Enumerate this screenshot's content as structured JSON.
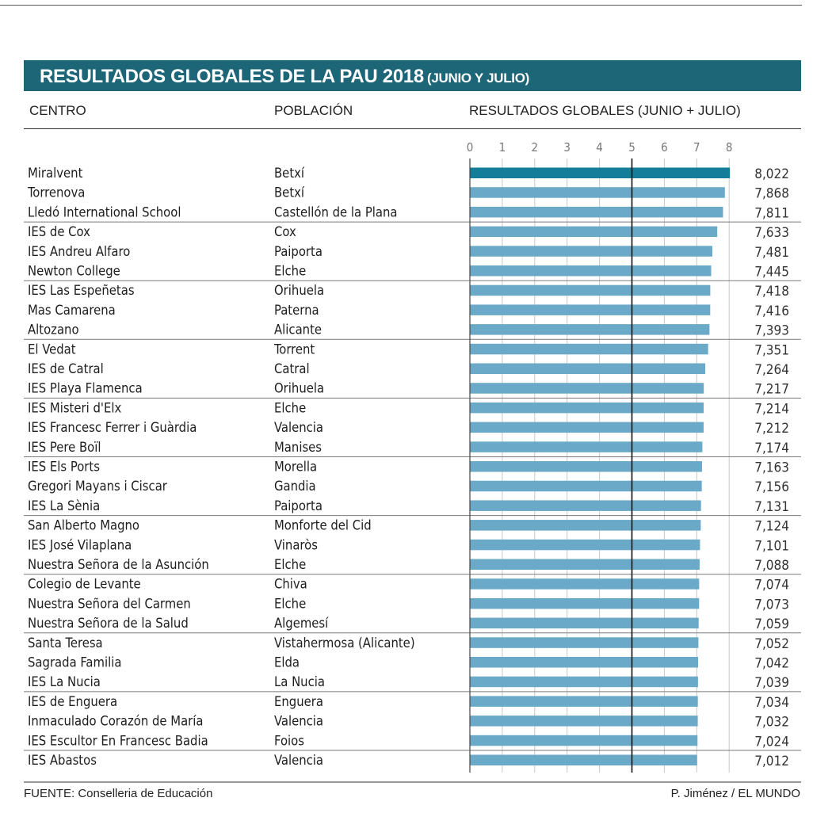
{
  "title": "RESULTADOS GLOBALES DE LA PAU 2018",
  "subtitle": "(JUNIO Y JULIO)",
  "headers": {
    "centro": "CENTRO",
    "poblacion": "POBLACIÓN",
    "resultados": "RESULTADOS GLOBALES (JUNIO + JULIO)"
  },
  "footer": {
    "source": "FUENTE: Conselleria de Educación",
    "credit": "P. Jiménez / EL MUNDO"
  },
  "colors": {
    "banner": "#1d6677",
    "highlight_bar": "#137d9a",
    "bar": "#6aaac8",
    "reference_line": "#111111"
  },
  "chart_data": {
    "type": "bar",
    "orientation": "horizontal",
    "xlim": [
      0,
      8
    ],
    "xticks": [
      "0",
      "1",
      "2",
      "3",
      "4",
      "5",
      "6",
      "7",
      "8"
    ],
    "reference_line": 5,
    "grid": true,
    "rows": [
      {
        "centro": "Miralvent",
        "poblacion": "Betxí",
        "value": 8.022,
        "label": "8,022",
        "highlight": true
      },
      {
        "centro": "Torrenova",
        "poblacion": "Betxí",
        "value": 7.868,
        "label": "7,868"
      },
      {
        "centro": "Lledó International School",
        "poblacion": "Castellón de la Plana",
        "value": 7.811,
        "label": "7,811"
      },
      {
        "centro": "IES de Cox",
        "poblacion": "Cox",
        "value": 7.633,
        "label": "7,633"
      },
      {
        "centro": "IES Andreu Alfaro",
        "poblacion": "Paiporta",
        "value": 7.481,
        "label": "7,481"
      },
      {
        "centro": "Newton College",
        "poblacion": "Elche",
        "value": 7.445,
        "label": "7,445"
      },
      {
        "centro": "IES Las Espeñetas",
        "poblacion": "Orihuela",
        "value": 7.418,
        "label": "7,418"
      },
      {
        "centro": "Mas Camarena",
        "poblacion": "Paterna",
        "value": 7.416,
        "label": "7,416"
      },
      {
        "centro": "Altozano",
        "poblacion": "Alicante",
        "value": 7.393,
        "label": "7,393"
      },
      {
        "centro": "El Vedat",
        "poblacion": "Torrent",
        "value": 7.351,
        "label": "7,351"
      },
      {
        "centro": "IES de Catral",
        "poblacion": "Catral",
        "value": 7.264,
        "label": "7,264"
      },
      {
        "centro": "IES Playa Flamenca",
        "poblacion": "Orihuela",
        "value": 7.217,
        "label": "7,217"
      },
      {
        "centro": "IES Misteri d'Elx",
        "poblacion": "Elche",
        "value": 7.214,
        "label": "7,214"
      },
      {
        "centro": "IES Francesc Ferrer i Guàrdia",
        "poblacion": "Valencia",
        "value": 7.212,
        "label": "7,212"
      },
      {
        "centro": "IES Pere Boïl",
        "poblacion": "Manises",
        "value": 7.174,
        "label": "7,174"
      },
      {
        "centro": "IES Els Ports",
        "poblacion": "Morella",
        "value": 7.163,
        "label": "7,163"
      },
      {
        "centro": "Gregori Mayans i Ciscar",
        "poblacion": "Gandia",
        "value": 7.156,
        "label": "7,156"
      },
      {
        "centro": "IES La Sènia",
        "poblacion": "Paiporta",
        "value": 7.131,
        "label": "7,131"
      },
      {
        "centro": "San Alberto Magno",
        "poblacion": "Monforte del Cid",
        "value": 7.124,
        "label": "7,124"
      },
      {
        "centro": "IES José Vilaplana",
        "poblacion": "Vinaròs",
        "value": 7.101,
        "label": "7,101"
      },
      {
        "centro": "Nuestra Señora de la Asunción",
        "poblacion": "Elche",
        "value": 7.088,
        "label": "7,088"
      },
      {
        "centro": "Colegio de Levante",
        "poblacion": "Chiva",
        "value": 7.074,
        "label": "7,074"
      },
      {
        "centro": "Nuestra Señora del Carmen",
        "poblacion": "Elche",
        "value": 7.073,
        "label": "7,073"
      },
      {
        "centro": "Nuestra Señora de la Salud",
        "poblacion": "Algemesí",
        "value": 7.059,
        "label": "7,059"
      },
      {
        "centro": "Santa Teresa",
        "poblacion": "Vistahermosa (Alicante)",
        "value": 7.052,
        "label": "7,052"
      },
      {
        "centro": "Sagrada Familia",
        "poblacion": "Elda",
        "value": 7.042,
        "label": "7,042"
      },
      {
        "centro": "IES La Nucia",
        "poblacion": "La Nucia",
        "value": 7.039,
        "label": "7,039"
      },
      {
        "centro": "IES de Enguera",
        "poblacion": "Enguera",
        "value": 7.034,
        "label": "7,034"
      },
      {
        "centro": "Inmaculado Corazón de María",
        "poblacion": "Valencia",
        "value": 7.032,
        "label": "7,032"
      },
      {
        "centro": "IES Escultor En Francesc Badia",
        "poblacion": "Foios",
        "value": 7.024,
        "label": "7,024"
      },
      {
        "centro": "IES Abastos",
        "poblacion": "Valencia",
        "value": 7.012,
        "label": "7,012"
      }
    ]
  }
}
